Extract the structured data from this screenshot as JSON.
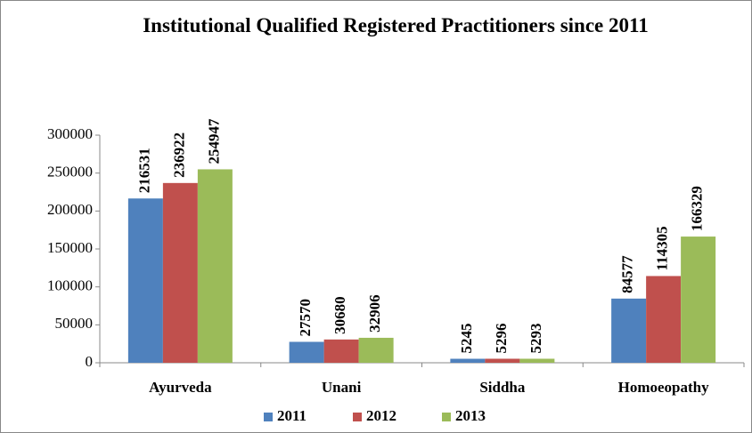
{
  "chart_data": {
    "type": "bar",
    "title": "Institutional Qualified Registered Practitioners since 2011",
    "categories": [
      "Ayurveda",
      "Unani",
      "Siddha",
      "Homoeopathy"
    ],
    "series": [
      {
        "name": "2011",
        "color": "#4f81bd",
        "values": [
          216531,
          27570,
          5245,
          84577
        ]
      },
      {
        "name": "2012",
        "color": "#c0504d",
        "values": [
          236922,
          30680,
          5296,
          114305
        ]
      },
      {
        "name": "2013",
        "color": "#9bbb59",
        "values": [
          254947,
          32906,
          5293,
          166329
        ]
      }
    ],
    "ylim": [
      0,
      300000
    ],
    "yticks": [
      0,
      50000,
      100000,
      150000,
      200000,
      250000,
      300000
    ],
    "grid": false,
    "legend": "bottom"
  }
}
